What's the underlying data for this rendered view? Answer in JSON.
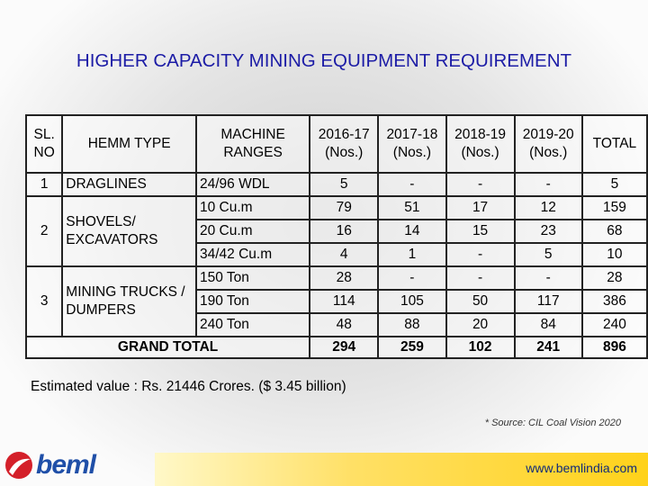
{
  "title": "HIGHER CAPACITY MINING EQUIPMENT REQUIREMENT",
  "table": {
    "header": [
      "SL.\nNO",
      "HEMM TYPE",
      "MACHINE\nRANGES",
      "2016-17\n(Nos.)",
      "2017-18\n(Nos.)",
      "2018-19\n(Nos.)",
      "2019-20\n(Nos.)",
      "TOTAL"
    ],
    "groups": [
      {
        "sl": "1",
        "type": "DRAGLINES",
        "ranges": [
          {
            "range": "24/96 WDL",
            "values": [
              "5",
              "-",
              "-",
              "-",
              "5"
            ]
          }
        ]
      },
      {
        "sl": "2",
        "type": "SHOVELS/\nEXCAVATORS",
        "ranges": [
          {
            "range": "10 Cu.m",
            "values": [
              "79",
              "51",
              "17",
              "12",
              "159"
            ]
          },
          {
            "range": "20 Cu.m",
            "values": [
              "16",
              "14",
              "15",
              "23",
              "68"
            ]
          },
          {
            "range": "34/42 Cu.m",
            "values": [
              "4",
              "1",
              "-",
              "5",
              "10"
            ]
          }
        ]
      },
      {
        "sl": "3",
        "type": "MINING TRUCKS /\nDUMPERS",
        "ranges": [
          {
            "range": "150 Ton",
            "values": [
              "28",
              "-",
              "-",
              "-",
              "28"
            ]
          },
          {
            "range": "190 Ton",
            "values": [
              "114",
              "105",
              "50",
              "117",
              "386"
            ]
          },
          {
            "range": "240 Ton",
            "values": [
              "48",
              "88",
              "20",
              "84",
              "240"
            ]
          }
        ]
      }
    ],
    "grand_total": {
      "label": "GRAND TOTAL",
      "values": [
        "294",
        "259",
        "102",
        "241",
        "896"
      ]
    }
  },
  "note": "Estimated value : Rs. 21446 Crores. ($ 3.45 billion)",
  "source": "* Source: CIL Coal Vision 2020",
  "footer": {
    "url": "www.bemlindia.com",
    "logo": "beml"
  }
}
